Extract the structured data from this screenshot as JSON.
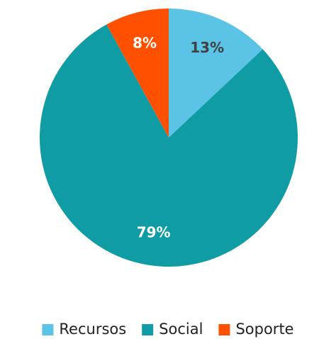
{
  "chart_data": {
    "type": "pie",
    "categories": [
      "Recursos",
      "Social",
      "Soporte"
    ],
    "values": [
      13,
      79,
      8
    ],
    "value_labels": [
      "13%",
      "79%",
      "8%"
    ],
    "colors": [
      "#5bc3e6",
      "#0f9ca4",
      "#ff5000"
    ],
    "label_colors": [
      "#404040",
      "#ffffff",
      "#ffffff"
    ],
    "legend": "bottom"
  }
}
